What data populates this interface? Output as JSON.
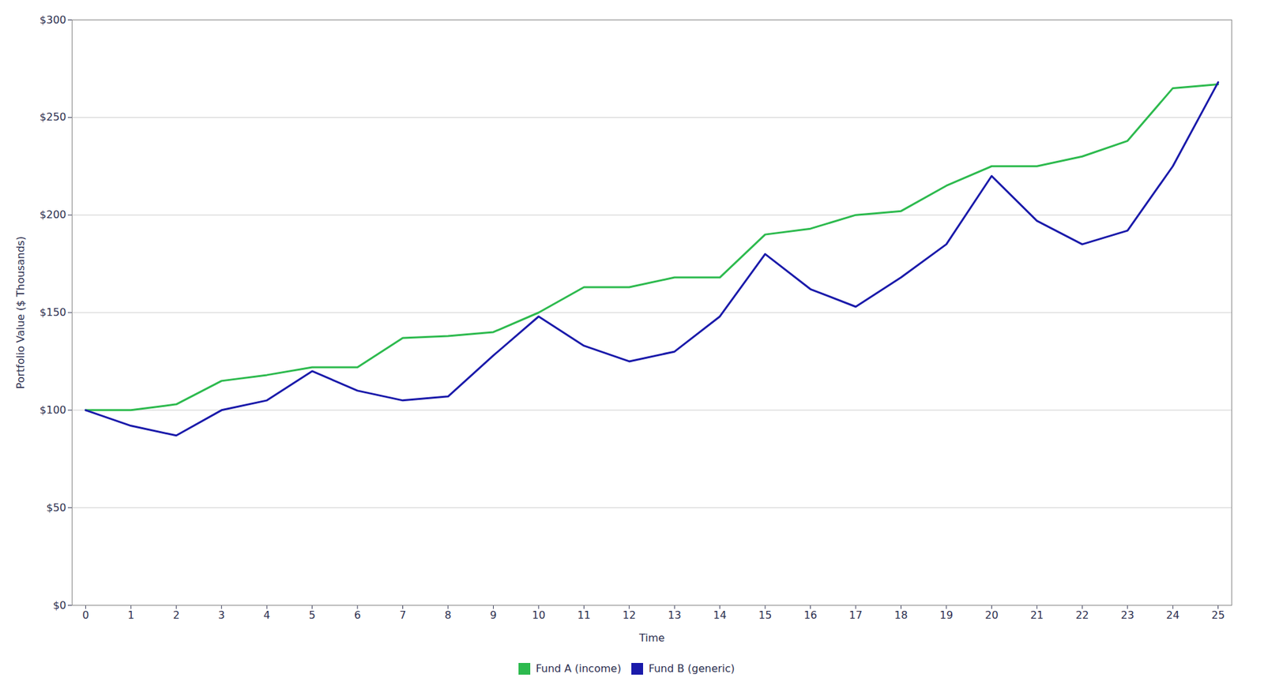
{
  "chart_data": {
    "type": "line",
    "x_label": "Time",
    "y_label": "Portfolio Value ($ Thousands)",
    "x": [
      0,
      1,
      2,
      3,
      4,
      5,
      6,
      7,
      8,
      9,
      10,
      11,
      12,
      13,
      14,
      15,
      16,
      17,
      18,
      19,
      20,
      21,
      22,
      23,
      24,
      25
    ],
    "series": [
      {
        "name": "Fund A (income)",
        "color": "#2dba4e",
        "values": [
          100,
          100,
          103,
          115,
          118,
          122,
          122,
          137,
          138,
          140,
          150,
          163,
          163,
          168,
          168,
          190,
          193,
          200,
          202,
          215,
          225,
          225,
          230,
          238,
          265,
          267
        ]
      },
      {
        "name": "Fund B (generic)",
        "color": "#1a1aaa",
        "values": [
          100,
          92,
          87,
          100,
          105,
          120,
          110,
          105,
          107,
          128,
          148,
          133,
          125,
          130,
          148,
          180,
          162,
          153,
          168,
          185,
          220,
          197,
          185,
          192,
          225,
          268
        ]
      }
    ],
    "xlim": [
      -0.3,
      25.3
    ],
    "xticks": [
      0,
      1,
      2,
      3,
      4,
      5,
      6,
      7,
      8,
      9,
      10,
      11,
      12,
      13,
      14,
      15,
      16,
      17,
      18,
      19,
      20,
      21,
      22,
      23,
      24,
      25
    ],
    "ylim": [
      0,
      300
    ],
    "yticks": [
      {
        "value": 0,
        "label": "$0"
      },
      {
        "value": 50,
        "label": "$50"
      },
      {
        "value": 100,
        "label": "$100"
      },
      {
        "value": 150,
        "label": "$150"
      },
      {
        "value": 200,
        "label": "$200"
      },
      {
        "value": 250,
        "label": "$250"
      },
      {
        "value": 300,
        "label": "$300"
      }
    ],
    "grid": "y",
    "legend": "bottom"
  }
}
